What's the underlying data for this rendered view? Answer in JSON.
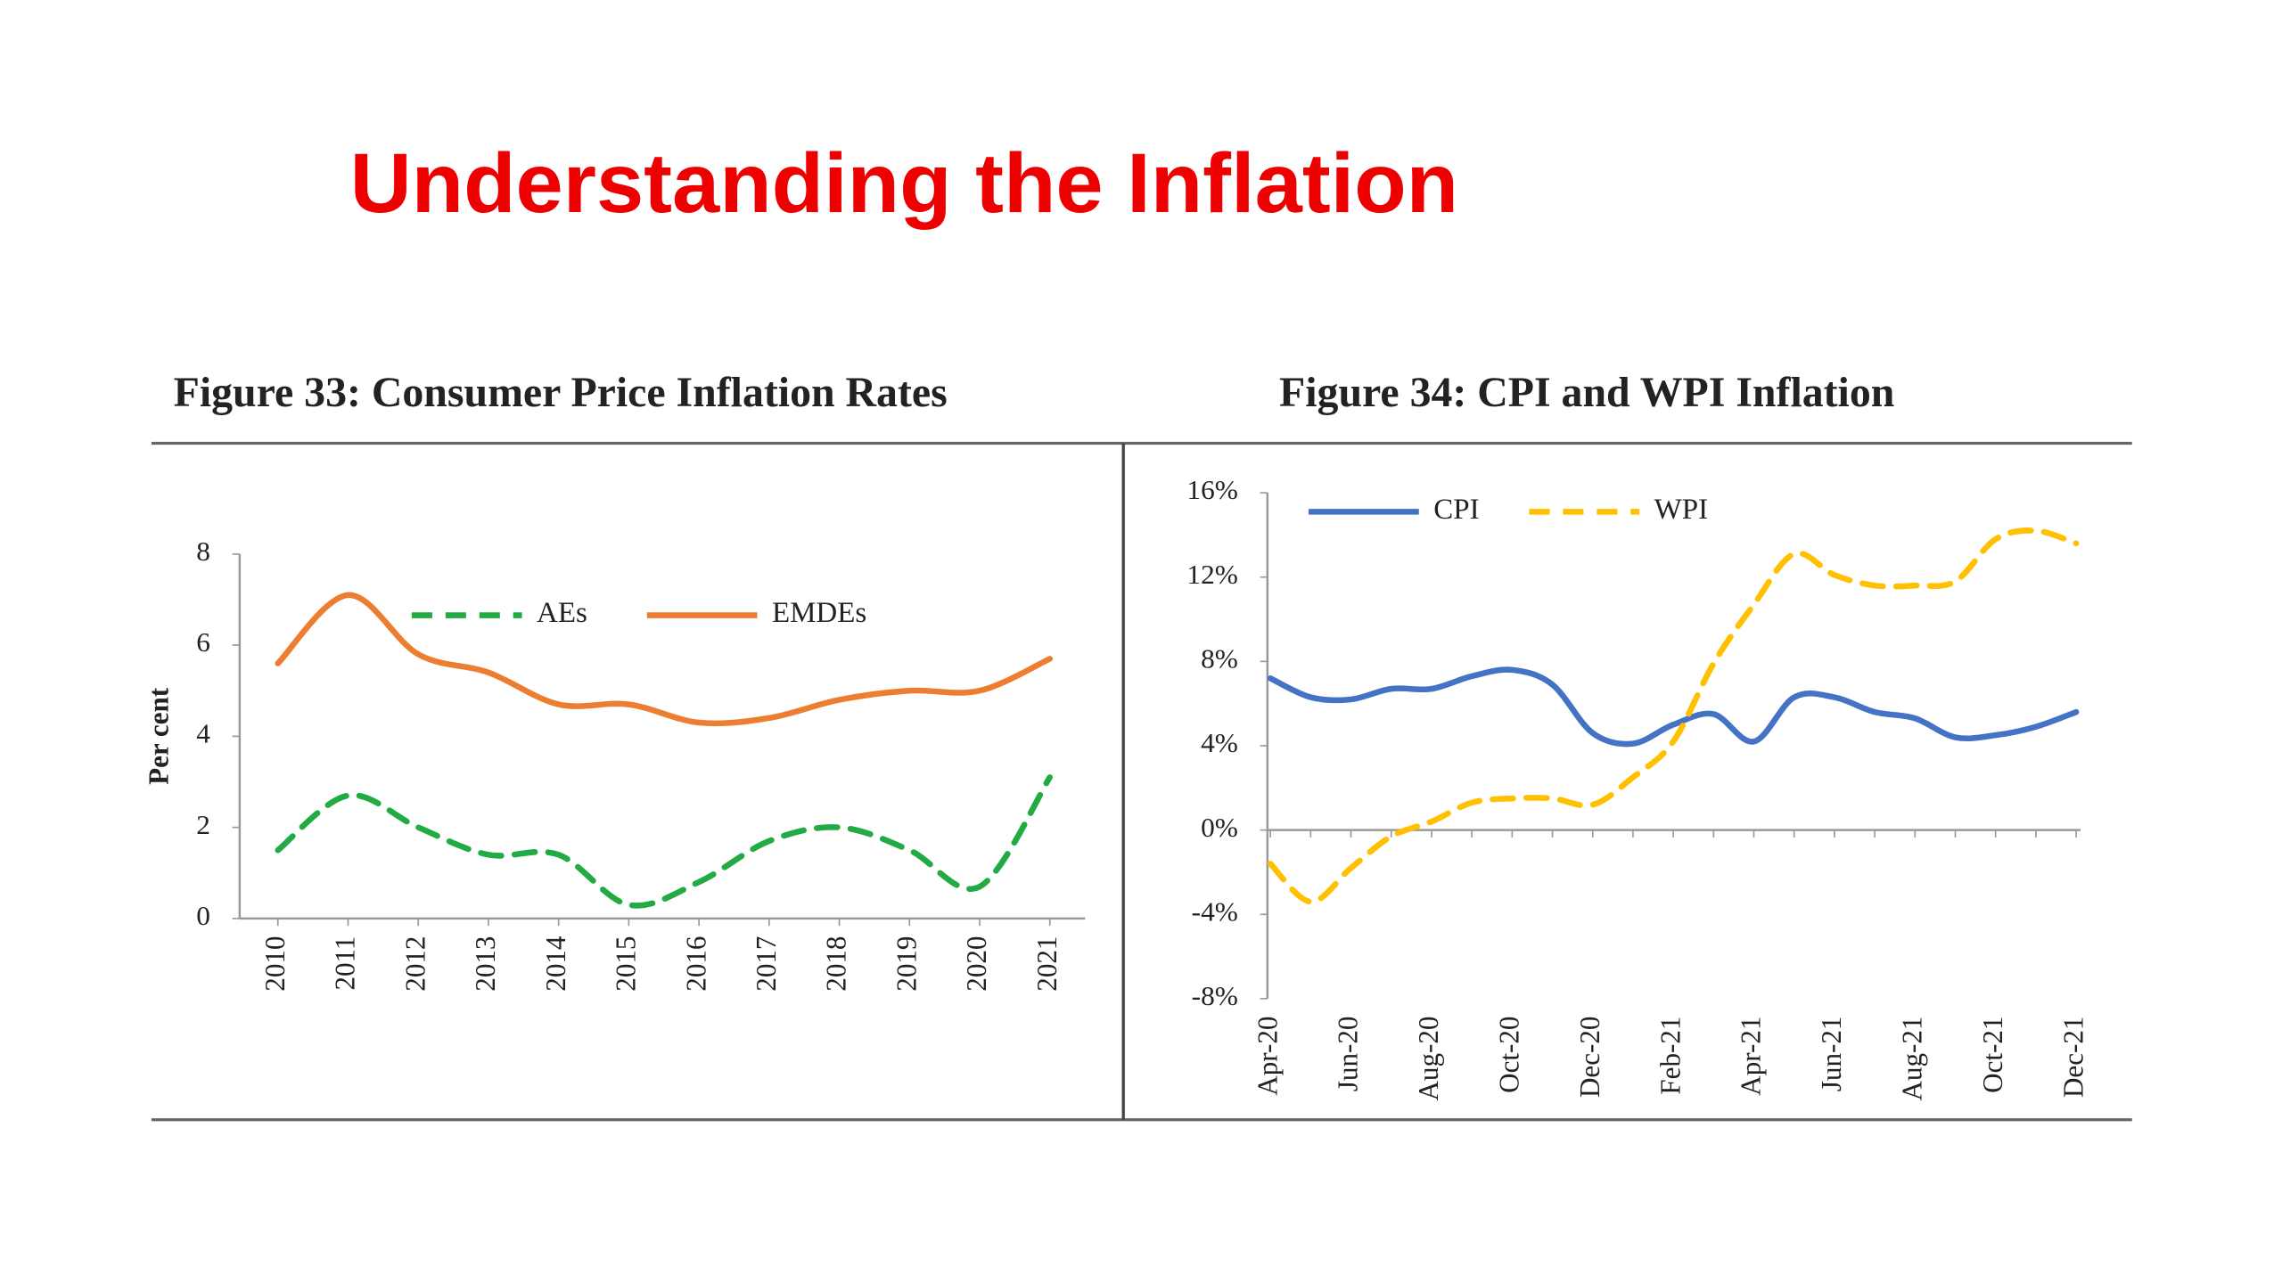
{
  "title": "Understanding the Inflation",
  "chart_data": [
    {
      "type": "line",
      "title": "Figure 33: Consumer Price Inflation Rates",
      "ylabel": "Per cent",
      "categories": [
        "2010",
        "2011",
        "2012",
        "2013",
        "2014",
        "2015",
        "2016",
        "2017",
        "2018",
        "2019",
        "2020",
        "2021"
      ],
      "series": [
        {
          "name": "AEs",
          "color": "#22aa44",
          "dashed": true,
          "values": [
            1.5,
            2.7,
            2.0,
            1.4,
            1.4,
            0.3,
            0.8,
            1.7,
            2.0,
            1.5,
            0.7,
            3.1
          ]
        },
        {
          "name": "EMDEs",
          "color": "#ed7d31",
          "dashed": false,
          "values": [
            5.6,
            7.1,
            5.8,
            5.4,
            4.7,
            4.7,
            4.3,
            4.4,
            4.8,
            5.0,
            5.0,
            5.7
          ]
        }
      ],
      "ylim": [
        0,
        8
      ],
      "yticks": [
        0,
        2,
        4,
        6,
        8
      ],
      "legend": "top"
    },
    {
      "type": "line",
      "title": "Figure 34: CPI and WPI Inflation",
      "categories": [
        "Apr-20",
        null,
        "Jun-20",
        null,
        "Aug-20",
        null,
        "Oct-20",
        null,
        "Dec-20",
        null,
        "Feb-21",
        null,
        "Apr-21",
        null,
        "Jun-21",
        null,
        "Aug-21",
        null,
        "Oct-21",
        null,
        "Dec-21"
      ],
      "series": [
        {
          "name": "CPI",
          "color": "#4472c4",
          "dashed": false,
          "values": [
            7.2,
            6.3,
            6.2,
            6.7,
            6.7,
            7.3,
            7.6,
            6.9,
            4.6,
            4.1,
            5.0,
            5.5,
            4.2,
            6.3,
            6.3,
            5.6,
            5.3,
            4.4,
            4.5,
            4.9,
            5.6
          ]
        },
        {
          "name": "WPI",
          "color": "#ffc000",
          "dashed": true,
          "values": [
            -1.6,
            -3.4,
            -1.8,
            -0.3,
            0.4,
            1.3,
            1.5,
            1.5,
            1.2,
            2.5,
            4.2,
            7.9,
            10.7,
            13.1,
            12.1,
            11.6,
            11.6,
            11.8,
            13.8,
            14.2,
            13.6
          ]
        }
      ],
      "ylim": [
        -8,
        16
      ],
      "yticks": [
        {
          "value": -8,
          "label": "-8%"
        },
        {
          "value": -4,
          "label": "-4%"
        },
        {
          "value": 0,
          "label": "0%"
        },
        {
          "value": 4,
          "label": "4%"
        },
        {
          "value": 8,
          "label": "8%"
        },
        {
          "value": 12,
          "label": "12%"
        },
        {
          "value": 16,
          "label": "16%"
        }
      ],
      "legend": "top-left"
    }
  ]
}
